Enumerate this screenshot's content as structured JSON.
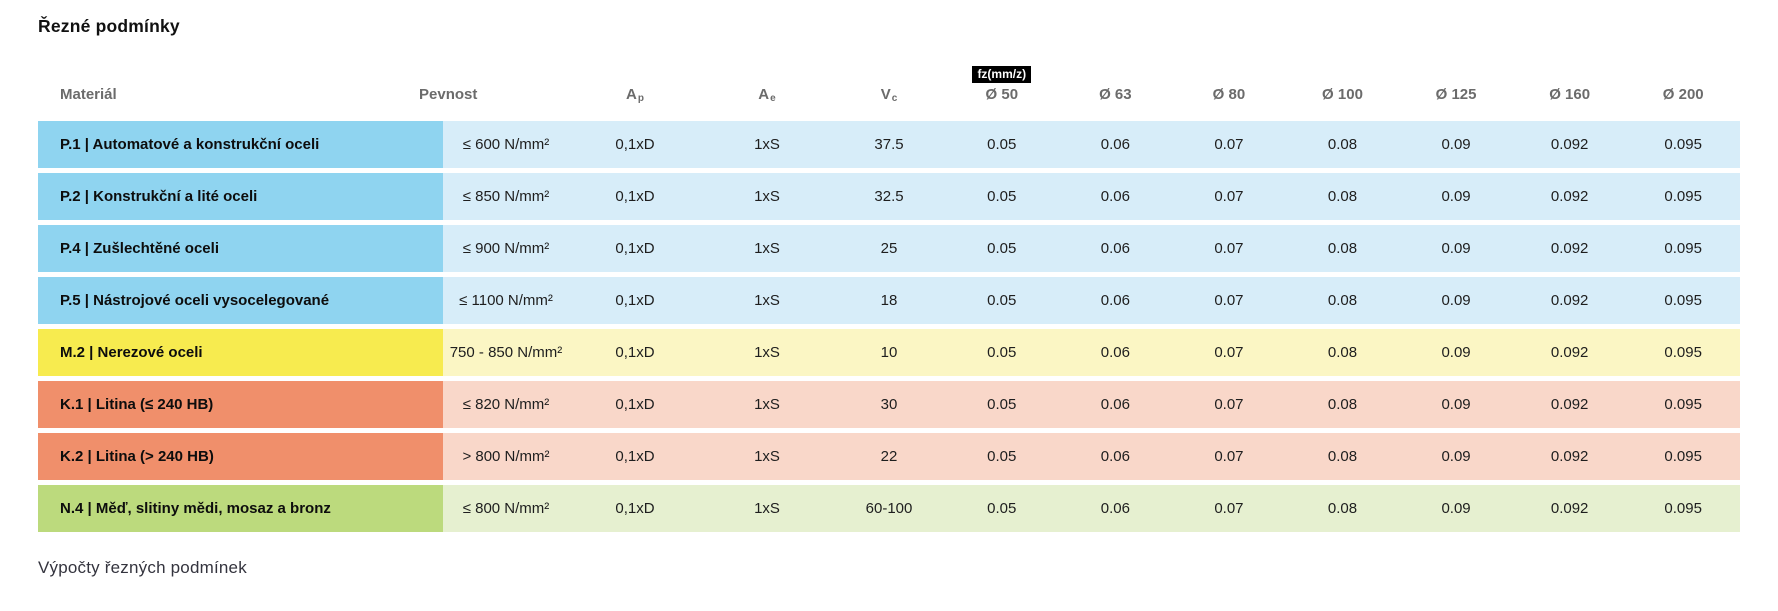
{
  "page": {
    "title": "Řezné podmínky",
    "section_footer": "Výpočty řezných podmínek"
  },
  "palette": {
    "blue": {
      "dark": "#8FD4F0",
      "light": "#D7EDF9"
    },
    "yellow": {
      "dark": "#F7EB4F",
      "light": "#FBF6C4"
    },
    "salmon": {
      "dark": "#F08F6B",
      "light": "#F9D7C9"
    },
    "green": {
      "dark": "#BCDA7D",
      "light": "#E6F0D0"
    }
  },
  "table": {
    "headers": {
      "material": "Materiál",
      "strength": "Pevnost",
      "ap": {
        "base": "A",
        "sub": "p"
      },
      "ae": {
        "base": "A",
        "sub": "e"
      },
      "vc": {
        "base": "V",
        "sub": "c"
      },
      "fz_badge": "fz(mm/z)",
      "diameters": [
        "Ø 50",
        "Ø 63",
        "Ø 80",
        "Ø 100",
        "Ø 125",
        "Ø 160",
        "Ø 200"
      ]
    },
    "rows": [
      {
        "group": "blue",
        "material": "P.1 | Automatové a konstrukční oceli",
        "strength": "≤ 600 N/mm²",
        "ap": "0,1xD",
        "ae": "1xS",
        "vc": "37.5",
        "fz": [
          "0.05",
          "0.06",
          "0.07",
          "0.08",
          "0.09",
          "0.092",
          "0.095"
        ]
      },
      {
        "group": "blue",
        "material": "P.2 | Konstrukční a lité oceli",
        "strength": "≤ 850 N/mm²",
        "ap": "0,1xD",
        "ae": "1xS",
        "vc": "32.5",
        "fz": [
          "0.05",
          "0.06",
          "0.07",
          "0.08",
          "0.09",
          "0.092",
          "0.095"
        ]
      },
      {
        "group": "blue",
        "material": "P.4 | Zušlechtěné oceli",
        "strength": "≤ 900 N/mm²",
        "ap": "0,1xD",
        "ae": "1xS",
        "vc": "25",
        "fz": [
          "0.05",
          "0.06",
          "0.07",
          "0.08",
          "0.09",
          "0.092",
          "0.095"
        ]
      },
      {
        "group": "blue",
        "material": "P.5 | Nástrojové oceli vysocelegované",
        "strength": "≤ 1100 N/mm²",
        "ap": "0,1xD",
        "ae": "1xS",
        "vc": "18",
        "fz": [
          "0.05",
          "0.06",
          "0.07",
          "0.08",
          "0.09",
          "0.092",
          "0.095"
        ]
      },
      {
        "group": "yellow",
        "material": "M.2 | Nerezové oceli",
        "strength": "750 - 850 N/mm²",
        "ap": "0,1xD",
        "ae": "1xS",
        "vc": "10",
        "fz": [
          "0.05",
          "0.06",
          "0.07",
          "0.08",
          "0.09",
          "0.092",
          "0.095"
        ]
      },
      {
        "group": "salmon",
        "material": "K.1 | Litina (≤ 240 HB)",
        "strength": "≤ 820 N/mm²",
        "ap": "0,1xD",
        "ae": "1xS",
        "vc": "30",
        "fz": [
          "0.05",
          "0.06",
          "0.07",
          "0.08",
          "0.09",
          "0.092",
          "0.095"
        ]
      },
      {
        "group": "salmon",
        "material": "K.2 | Litina (> 240 HB)",
        "strength": "> 800 N/mm²",
        "ap": "0,1xD",
        "ae": "1xS",
        "vc": "22",
        "fz": [
          "0.05",
          "0.06",
          "0.07",
          "0.08",
          "0.09",
          "0.092",
          "0.095"
        ]
      },
      {
        "group": "green",
        "material": "N.4 | Měď, slitiny mědi, mosaz a bronz",
        "strength": "≤ 800 N/mm²",
        "ap": "0,1xD",
        "ae": "1xS",
        "vc": "60-100",
        "fz": [
          "0.05",
          "0.06",
          "0.07",
          "0.08",
          "0.09",
          "0.092",
          "0.095"
        ]
      }
    ]
  }
}
